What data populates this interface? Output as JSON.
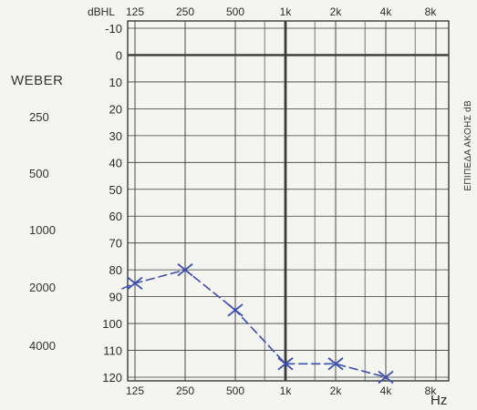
{
  "chart_data": {
    "type": "line",
    "frequency_unit": "Hz",
    "level_unit": "dBHL",
    "x_tick_labels_top": [
      "125",
      "250",
      "500",
      "1k",
      "2k",
      "4k",
      "8k"
    ],
    "x_tick_labels_bottom": [
      "125",
      "250",
      "500",
      "1k",
      "2k",
      "4k",
      "8k"
    ],
    "x_scale": "log",
    "y_ticks": [
      -10,
      0,
      10,
      20,
      30,
      40,
      50,
      60,
      70,
      80,
      90,
      100,
      110,
      120
    ],
    "ylim": [
      -10,
      120
    ],
    "y_inverted": true,
    "grid": true,
    "series": [
      {
        "marker": "x",
        "line_style": "dashed",
        "color": "#3b4fb0",
        "x": [
          125,
          250,
          500,
          1000,
          2000,
          4000
        ],
        "y": [
          85,
          80,
          95,
          115,
          115,
          120
        ]
      }
    ],
    "side_label": "ΕΠΙΠΕΔΑ ΑΚΟΗΣ dB"
  },
  "weber": {
    "title": "WEBER",
    "values": [
      "250",
      "500",
      "1000",
      "2000",
      "4000"
    ]
  }
}
